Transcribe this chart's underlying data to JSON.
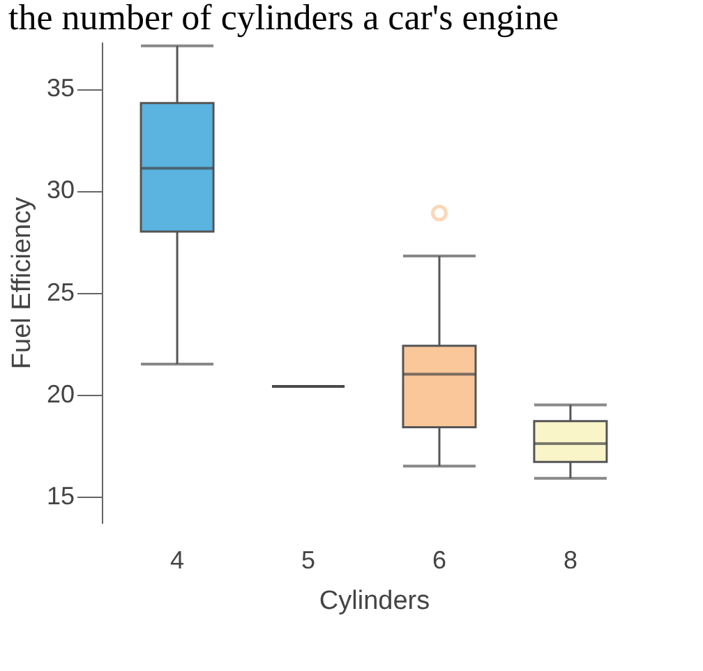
{
  "chart_data": {
    "type": "box",
    "annotations": [
      "the number of cylinders a car's engine"
    ],
    "xlabel": "Cylinders",
    "ylabel": "Fuel Efficiency",
    "categories": [
      "4",
      "5",
      "6",
      "8"
    ],
    "colors": [
      "#5bb3e0",
      "#555555",
      "#f9c79a",
      "#f9f5c8"
    ],
    "boxes": [
      {
        "low": 21.5,
        "q1": 28.0,
        "median": 31.1,
        "q3": 34.3,
        "high": 37.1
      },
      {
        "low": 20.4,
        "q1": 20.4,
        "median": 20.4,
        "q3": 20.4,
        "high": 20.4
      },
      {
        "low": 16.5,
        "q1": 18.4,
        "median": 21.0,
        "q3": 22.4,
        "high": 26.8,
        "outliers": [
          28.9
        ]
      },
      {
        "low": 15.9,
        "q1": 16.7,
        "median": 17.6,
        "q3": 18.7,
        "high": 19.5
      }
    ],
    "ylim": [
      13.7,
      37.3
    ],
    "yticks": [
      15,
      20,
      25,
      30,
      35
    ],
    "grid": false
  }
}
